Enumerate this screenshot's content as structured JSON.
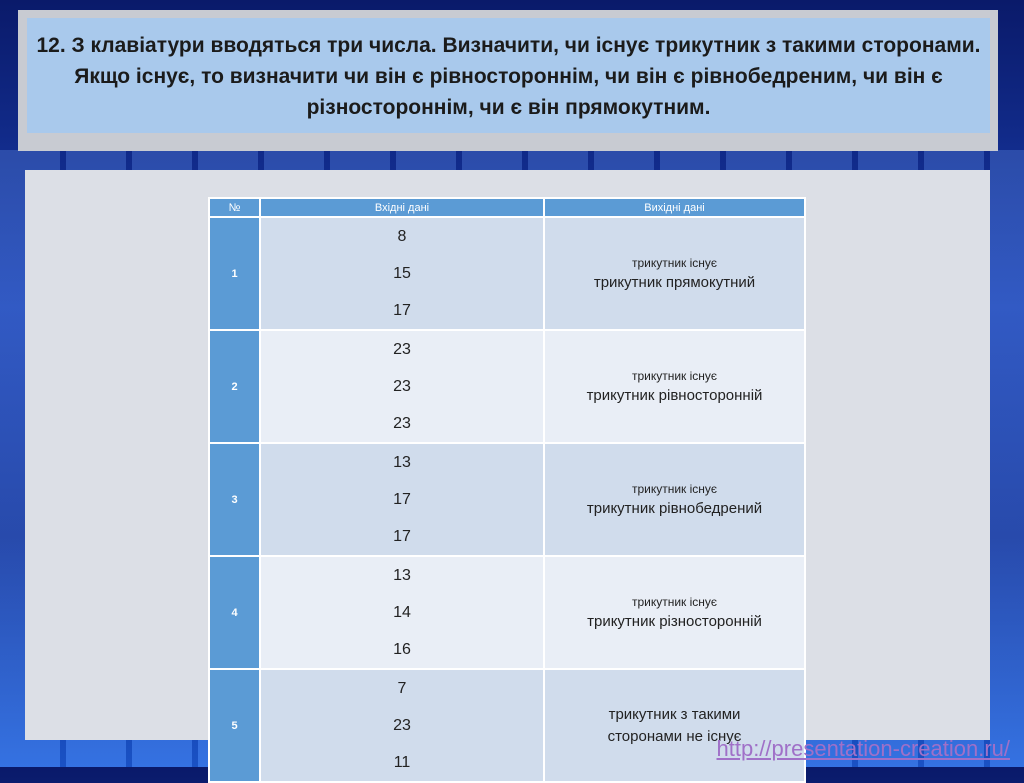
{
  "title": "12. З клавіатури вводяться три числа. Визначити, чи існує трикутник з такими сторонами. Якщо існує, то визначити чи він є рівностороннім, чи він є рівнобедреним, чи він є різностороннім, чи є він прямокутним.",
  "table": {
    "headers": [
      "№",
      "Вхідні дані",
      "Вихідні дані"
    ],
    "rows": [
      {
        "n": "1",
        "inputs": [
          "8",
          "15",
          "17"
        ],
        "out_a": "трикутник існує",
        "out_b": "трикутник прямокутний"
      },
      {
        "n": "2",
        "inputs": [
          "23",
          "23",
          "23"
        ],
        "out_a": "трикутник існує",
        "out_b": "трикутник рівносторонній"
      },
      {
        "n": "3",
        "inputs": [
          "13",
          "17",
          "17"
        ],
        "out_a": "трикутник існує",
        "out_b": "трикутник рівнобедрений"
      },
      {
        "n": "4",
        "inputs": [
          "13",
          "14",
          "16"
        ],
        "out_a": "трикутник існує",
        "out_b": "трикутник різносторонній"
      },
      {
        "n": "5",
        "inputs": [
          "7",
          "23",
          "11"
        ],
        "out_a": "",
        "out_b": "трикутник з такими сторонами не існує"
      }
    ]
  },
  "footer_link": "http://presentation-creation.ru/"
}
